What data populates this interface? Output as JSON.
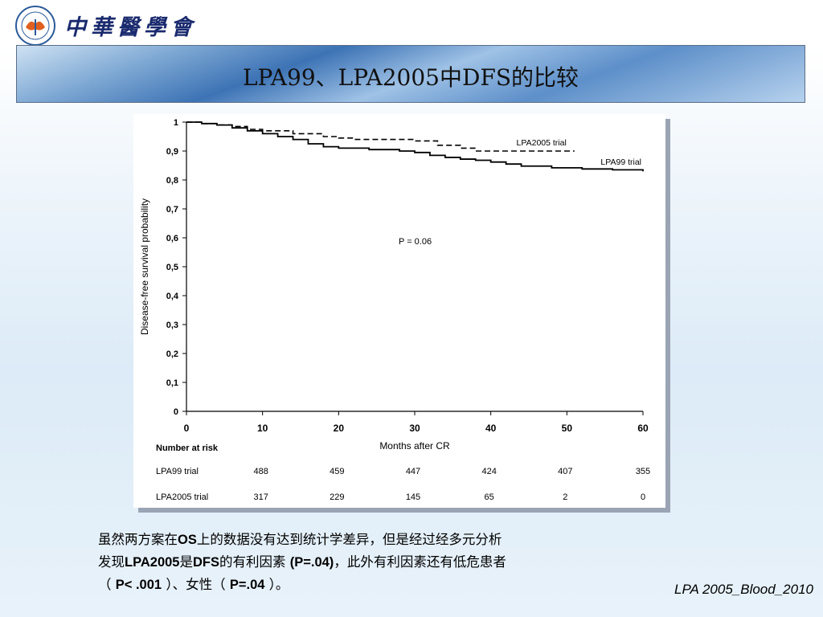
{
  "header": {
    "logo_name": "chinese-medical-association-logo",
    "brand_text": "中華醫學會"
  },
  "slide": {
    "title": "LPA99、LPA2005中DFS的比较"
  },
  "chart_data": {
    "type": "line",
    "xlabel": "Months after CR",
    "ylabel": "Disease-free survival probability",
    "xlim": [
      0,
      60
    ],
    "ylim": [
      0,
      1
    ],
    "x_ticks": [
      "0",
      "10",
      "20",
      "30",
      "40",
      "50",
      "60"
    ],
    "y_ticks": [
      "0",
      "0,1",
      "0,2",
      "0,3",
      "0,4",
      "0,5",
      "0,6",
      "0,7",
      "0,8",
      "0,9",
      "1"
    ],
    "grid": false,
    "series": [
      {
        "name": "LPA2005 trial",
        "style": "dashed",
        "x": [
          0,
          2,
          4,
          6,
          8,
          10,
          14,
          18,
          20,
          22,
          26,
          30,
          33,
          36,
          38,
          40,
          44,
          48,
          51
        ],
        "y": [
          1.0,
          0.995,
          0.99,
          0.985,
          0.975,
          0.97,
          0.96,
          0.95,
          0.945,
          0.94,
          0.94,
          0.935,
          0.92,
          0.91,
          0.9,
          0.9,
          0.9,
          0.9,
          0.9
        ]
      },
      {
        "name": "LPA99 trial",
        "style": "solid",
        "x": [
          0,
          2,
          4,
          6,
          8,
          10,
          12,
          14,
          16,
          18,
          20,
          24,
          28,
          30,
          32,
          34,
          36,
          38,
          40,
          42,
          44,
          48,
          52,
          56,
          60
        ],
        "y": [
          1.0,
          0.995,
          0.99,
          0.98,
          0.97,
          0.96,
          0.95,
          0.94,
          0.925,
          0.915,
          0.91,
          0.905,
          0.9,
          0.895,
          0.885,
          0.878,
          0.872,
          0.868,
          0.862,
          0.855,
          0.848,
          0.842,
          0.838,
          0.835,
          0.83
        ]
      }
    ],
    "annotation": "P = 0.06",
    "risk_table": {
      "title": "Number at risk",
      "rows": [
        {
          "label": "LPA99 trial",
          "values": [
            "488",
            "459",
            "447",
            "424",
            "407",
            "355"
          ]
        },
        {
          "label": "LPA2005 trial",
          "values": [
            "317",
            "229",
            "145",
            "65",
            "2",
            "0"
          ]
        }
      ]
    }
  },
  "caption": {
    "line1_pre": "虽然两方案在",
    "line1_b1": "OS",
    "line1_post": "上的数据没有达到统计学差异，但是经过经多元分析",
    "line2_pre": "发现",
    "line2_b1": "LPA2005",
    "line2_mid1": "是",
    "line2_b2": "DFS",
    "line2_mid2": "的有利因素 ",
    "line2_b3": "(P=.04)",
    "line2_post": "，此外有利因素还有低危患者",
    "line3_pre": "（ ",
    "line3_b1": "P< .001",
    "line3_mid": " ）、女性（ ",
    "line3_b2": "P=.04",
    "line3_post": " ）。"
  },
  "reference": "LPA 2005_Blood_2010"
}
